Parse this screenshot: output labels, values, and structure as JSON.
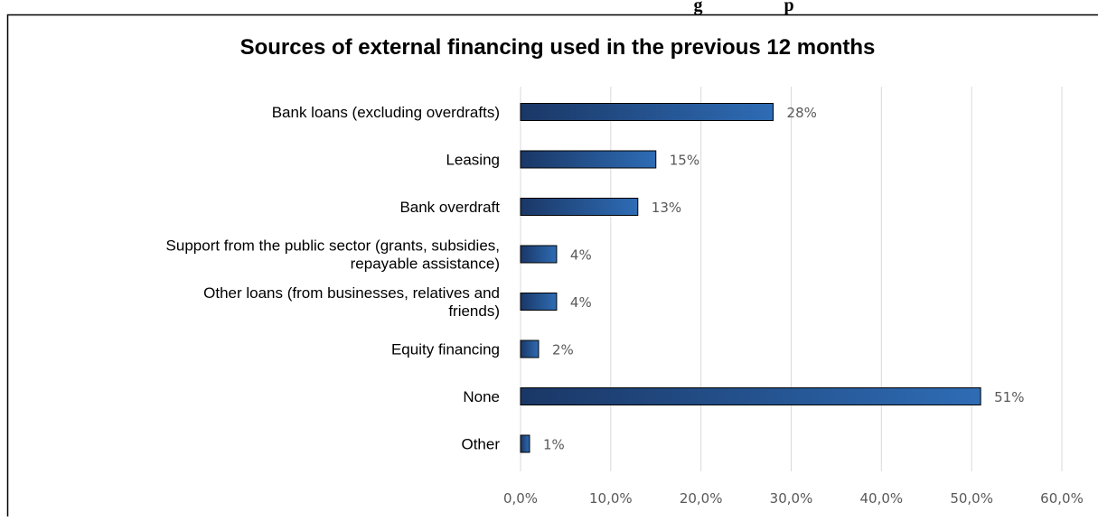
{
  "header_cut_text": "g                  p",
  "chart_data": {
    "type": "bar",
    "orientation": "horizontal",
    "title": "Sources of external financing used in the previous 12 months",
    "xlabel": "",
    "ylabel": "",
    "categories": [
      [
        "Bank loans (excluding overdrafts)"
      ],
      [
        "Leasing"
      ],
      [
        "Bank overdraft"
      ],
      [
        "Support from the public sector (grants, subsidies,",
        "repayable assistance)"
      ],
      [
        "Other loans (from businesses, relatives and",
        "friends)"
      ],
      [
        "Equity financing"
      ],
      [
        "None"
      ],
      [
        "Other"
      ]
    ],
    "values": [
      0.28,
      0.15,
      0.13,
      0.04,
      0.04,
      0.02,
      0.51,
      0.01
    ],
    "data_labels": [
      "28%",
      "15%",
      "13%",
      "4%",
      "4%",
      "2%",
      "51%",
      "1%"
    ],
    "xlim": [
      0,
      0.6
    ],
    "xticks": [
      0,
      0.1,
      0.2,
      0.3,
      0.4,
      0.5,
      0.6
    ],
    "xtick_labels": [
      "0,0%",
      "10,0%",
      "20,0%",
      "30,0%",
      "40,0%",
      "50,0%",
      "60,0%"
    ],
    "grid": "vertical",
    "legend": "none",
    "colors": {
      "bar_dark": "#1a3766",
      "bar_light": "#2e6cb5",
      "grid": "#d9d9d9",
      "frame": "#000000"
    }
  }
}
